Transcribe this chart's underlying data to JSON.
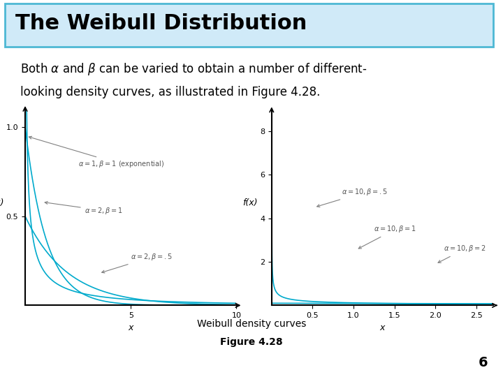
{
  "title": "The Weibull Distribution",
  "subtitle": "Both α and β can be varied to obtain a number of different-\nlooking density curves, as illustrated in Figure 4.28.",
  "fig_caption": "Weibull density curves",
  "fig_number": "Figure 4.28",
  "page_number": "6",
  "title_bg_color": "#d0eaf8",
  "title_border_color": "#4db8d4",
  "curve_color": "#00aacc",
  "left_plot": {
    "xlabel": "x",
    "ylabel": "f(x)",
    "xlim": [
      0,
      10
    ],
    "ylim": [
      0,
      1.1
    ],
    "yticks": [
      0.5,
      1.0
    ],
    "xticks": [
      5,
      10
    ],
    "curves": [
      {
        "alpha": 1,
        "beta": 1,
        "label": "α = 1, β = 1 (exponential)"
      },
      {
        "alpha": 2,
        "beta": 1,
        "label": "α = 2, β = 1"
      },
      {
        "alpha": 2,
        "beta": 0.5,
        "label": "α = 2, β = .5"
      }
    ]
  },
  "right_plot": {
    "xlabel": "x",
    "ylabel": "f(x)",
    "xlim": [
      0,
      2.7
    ],
    "ylim": [
      0,
      9
    ],
    "yticks": [
      2,
      4,
      6,
      8
    ],
    "xticks": [
      0.5,
      1.0,
      1.5,
      2.0,
      2.5
    ],
    "curves": [
      {
        "alpha": 10,
        "beta": 0.5,
        "label": "α = 10, β = .5"
      },
      {
        "alpha": 10,
        "beta": 1,
        "label": "α = 10, β = 1"
      },
      {
        "alpha": 10,
        "beta": 2,
        "label": "α = 10, β = 2"
      }
    ]
  }
}
